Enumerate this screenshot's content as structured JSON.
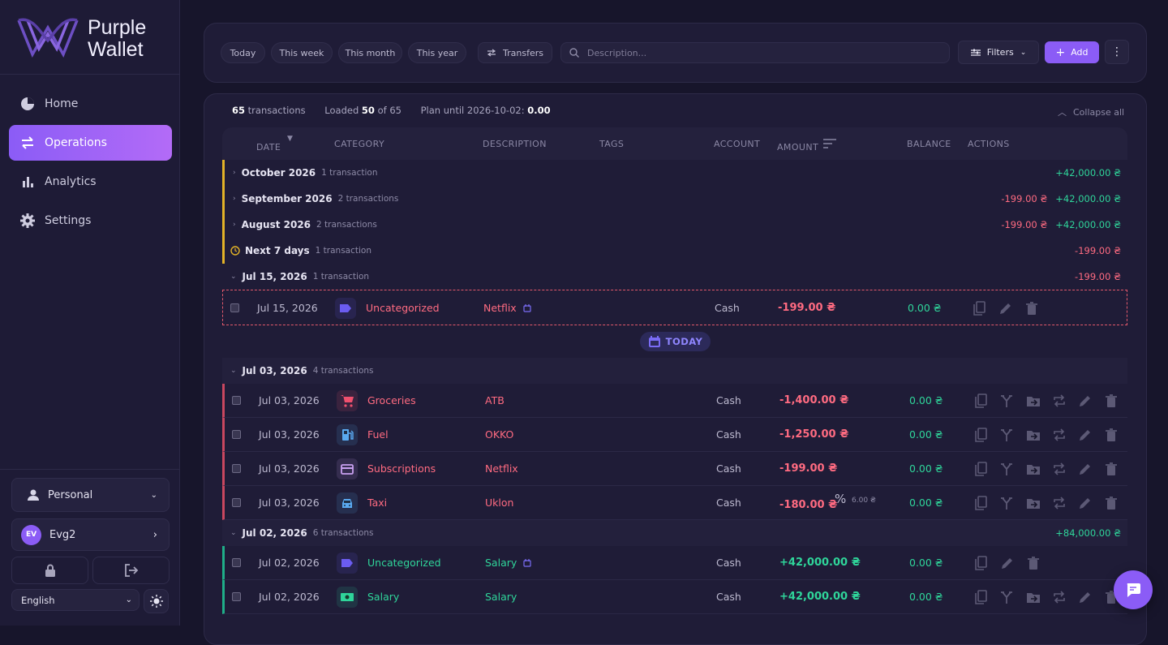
{
  "brand": {
    "line1": "Purple",
    "line2": "Wallet"
  },
  "nav": [
    {
      "label": "Home",
      "icon": "pie",
      "active": false
    },
    {
      "label": "Operations",
      "icon": "swap",
      "active": true
    },
    {
      "label": "Analytics",
      "icon": "bars",
      "active": false
    },
    {
      "label": "Settings",
      "icon": "gear",
      "active": false
    }
  ],
  "account": {
    "profile": "Personal",
    "initials": "EV",
    "user": "Evg2",
    "language": "English"
  },
  "toolbar": {
    "periods": [
      "Today",
      "This week",
      "This month",
      "This year"
    ],
    "transfers": "Transfers",
    "search_placeholder": "Description...",
    "filters": "Filters",
    "add": "Add"
  },
  "summary": {
    "count": "65",
    "count_label": "transactions",
    "loaded_prefix": "Loaded",
    "loaded": "50",
    "loaded_suffix": "of 65",
    "plan_label": "Plan until 2026-10-02:",
    "plan_value": "0.00",
    "collapse": "Collapse all"
  },
  "columns": [
    "DATE",
    "CATEGORY",
    "DESCRIPTION",
    "TAGS",
    "ACCOUNT",
    "AMOUNT",
    "BALANCE",
    "ACTIONS"
  ],
  "today_label": "TODAY",
  "groups": [
    {
      "label": "October 2026",
      "count": "1 transaction",
      "accent": "#e2b227",
      "expanded": false,
      "totals": [
        {
          "text": "+42,000.00 ₴",
          "kind": "income"
        }
      ],
      "rows": []
    },
    {
      "label": "September 2026",
      "count": "2 transactions",
      "accent": "#e2b227",
      "expanded": false,
      "totals": [
        {
          "text": "-199.00 ₴",
          "kind": "expense"
        },
        {
          "text": "+42,000.00 ₴",
          "kind": "income"
        }
      ],
      "rows": []
    },
    {
      "label": "August 2026",
      "count": "2 transactions",
      "accent": "#e2b227",
      "expanded": false,
      "totals": [
        {
          "text": "-199.00 ₴",
          "kind": "expense"
        },
        {
          "text": "+42,000.00 ₴",
          "kind": "income"
        }
      ],
      "rows": []
    },
    {
      "label": "Next 7 days",
      "count": "1 transaction",
      "accent": "#e2b227",
      "expanded": false,
      "clock": true,
      "totals": [
        {
          "text": "-199.00 ₴",
          "kind": "expense"
        }
      ],
      "rows": []
    },
    {
      "label": "Jul 15, 2026",
      "count": "1 transaction",
      "expanded": true,
      "totals": [
        {
          "text": "-199.00 ₴",
          "kind": "expense"
        }
      ],
      "rows": [
        {
          "date": "Jul 15, 2026",
          "category": "Uncategorized",
          "icon": "tag",
          "icon_color": "#6b5cf0",
          "description": "Netflix",
          "linked": true,
          "account": "Cash",
          "amount": "-199.00 ₴",
          "balance": "0.00 ₴",
          "kind": "planned",
          "actions": [
            "copy",
            "edit",
            "delete"
          ]
        }
      ]
    },
    {
      "today": true
    },
    {
      "label": "Jul 03, 2026",
      "count": "4 transactions",
      "expanded": true,
      "totals": [],
      "rows": [
        {
          "date": "Jul 03, 2026",
          "category": "Groceries",
          "icon": "cart",
          "icon_color": "#f0506e",
          "description": "ATB",
          "account": "Cash",
          "amount": "-1,400.00 ₴",
          "balance": "0.00 ₴",
          "kind": "expense",
          "actions": [
            "copy",
            "split",
            "move",
            "repeat",
            "edit",
            "delete"
          ]
        },
        {
          "date": "Jul 03, 2026",
          "category": "Fuel",
          "icon": "fuel",
          "icon_color": "#5aa9f0",
          "description": "OKKO",
          "account": "Cash",
          "amount": "-1,250.00 ₴",
          "balance": "0.00 ₴",
          "kind": "expense",
          "actions": [
            "copy",
            "split",
            "move",
            "repeat",
            "edit",
            "delete"
          ]
        },
        {
          "date": "Jul 03, 2026",
          "category": "Subscriptions",
          "icon": "card",
          "icon_color": "#c9a0f0",
          "description": "Netflix",
          "account": "Cash",
          "amount": "-199.00 ₴",
          "balance": "0.00 ₴",
          "kind": "expense",
          "actions": [
            "copy",
            "split",
            "move",
            "repeat",
            "edit",
            "delete"
          ]
        },
        {
          "date": "Jul 03, 2026",
          "category": "Taxi",
          "icon": "taxi",
          "icon_color": "#5aa9f0",
          "description": "Uklon",
          "account": "Cash",
          "amount": "-180.00 ₴",
          "commission": "6.00 ₴",
          "balance": "0.00 ₴",
          "kind": "expense",
          "actions": [
            "copy",
            "split",
            "move",
            "repeat",
            "edit",
            "delete"
          ]
        }
      ]
    },
    {
      "label": "Jul 02, 2026",
      "count": "6 transactions",
      "expanded": true,
      "totals": [
        {
          "text": "+84,000.00 ₴",
          "kind": "income"
        }
      ],
      "rows": [
        {
          "date": "Jul 02, 2026",
          "category": "Uncategorized",
          "icon": "tag",
          "icon_color": "#6b5cf0",
          "description": "Salary",
          "linked": true,
          "account": "Cash",
          "amount": "+42,000.00 ₴",
          "balance": "0.00 ₴",
          "kind": "income",
          "actions": [
            "copy",
            "edit",
            "delete"
          ]
        },
        {
          "date": "Jul 02, 2026",
          "category": "Salary",
          "icon": "cash",
          "icon_color": "#2fd59a",
          "description": "Salary",
          "account": "Cash",
          "amount": "+42,000.00 ₴",
          "balance": "0.00 ₴",
          "kind": "income",
          "actions": [
            "copy",
            "split",
            "move",
            "repeat",
            "edit",
            "delete"
          ]
        }
      ]
    }
  ]
}
